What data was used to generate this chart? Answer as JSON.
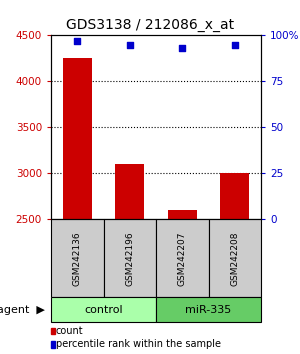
{
  "title": "GDS3138 / 212086_x_at",
  "categories": [
    "GSM242136",
    "GSM242196",
    "GSM242207",
    "GSM242208"
  ],
  "bar_values": [
    4250,
    3100,
    2600,
    3000
  ],
  "percentile_values": [
    97,
    95,
    93,
    95
  ],
  "ylim_left": [
    2500,
    4500
  ],
  "ylim_right": [
    0,
    100
  ],
  "left_yticks": [
    2500,
    3000,
    3500,
    4000,
    4500
  ],
  "right_yticks": [
    0,
    25,
    50,
    75,
    100
  ],
  "right_yticklabels": [
    "0",
    "25",
    "50",
    "75",
    "100%"
  ],
  "bar_color": "#cc0000",
  "scatter_color": "#0000cc",
  "bar_width": 0.55,
  "groups": [
    {
      "label": "control",
      "indices": [
        0,
        1
      ],
      "color": "#aaffaa"
    },
    {
      "label": "miR-335",
      "indices": [
        2,
        3
      ],
      "color": "#66cc66"
    }
  ],
  "legend_items": [
    {
      "label": "count",
      "color": "#cc0000"
    },
    {
      "label": "percentile rank within the sample",
      "color": "#0000cc"
    }
  ],
  "grid_yticks": [
    3000,
    3500,
    4000
  ],
  "title_fontsize": 10,
  "tick_fontsize": 7.5,
  "cat_fontsize": 6.5,
  "legend_fontsize": 7,
  "group_fontsize": 8,
  "agent_fontsize": 8
}
